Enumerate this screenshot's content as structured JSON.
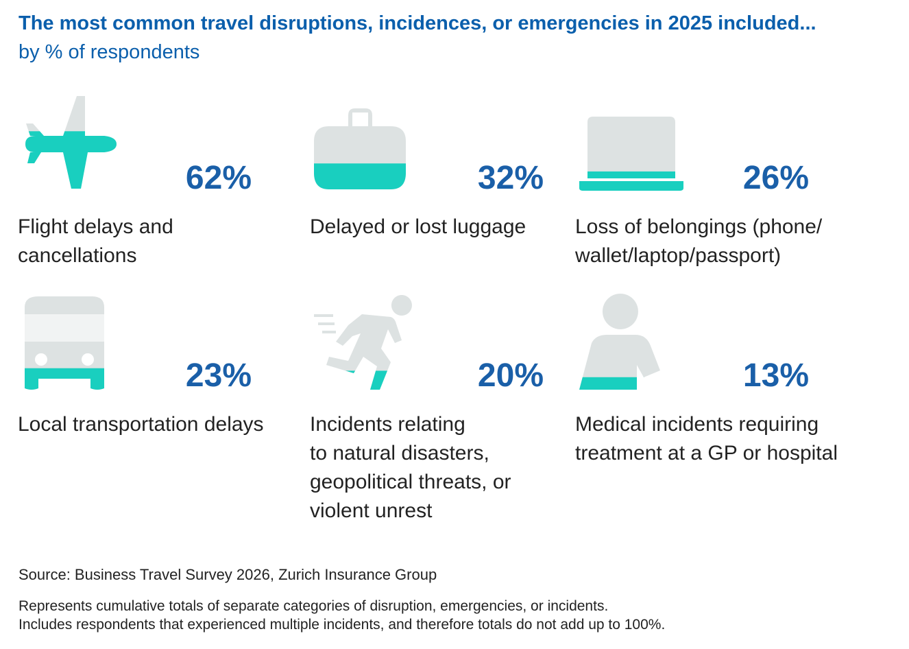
{
  "chart_data": {
    "type": "pictograph",
    "title": "The most common travel disruptions, incidences, or emergencies in 2025 included...",
    "subtitle": "by % of respondents",
    "categories": [
      "Flight delays and\ncancellations",
      "Delayed or lost luggage",
      "Loss of belongings (phone/\nwallet/laptop/passport)",
      "Local transportation delays",
      "Incidents relating\nto natural disasters,\ngeopolitical threats, or\nviolent unrest",
      "Medical incidents requiring\ntreatment at a GP or hospital"
    ],
    "values": [
      62,
      32,
      26,
      23,
      20,
      13
    ],
    "value_labels": [
      "62%",
      "32%",
      "26%",
      "23%",
      "20%",
      "13%"
    ],
    "color": "#19cfbf",
    "base_color": "#dde2e2",
    "source": "Source: Business Travel Survey 2026, Zurich Insurance Group",
    "notes": "Represents cumulative totals of separate categories of disruption, emergencies, or incidents.\nIncludes respondents that experienced multiple incidents, and therefore totals do not add up to 100%."
  }
}
